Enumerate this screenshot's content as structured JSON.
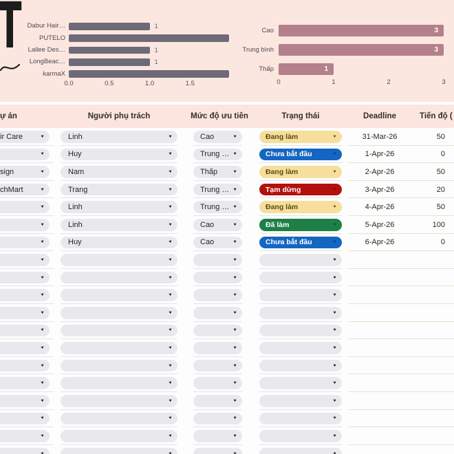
{
  "decor": {
    "title_fragment": "T",
    "swash": "~"
  },
  "chart_data": [
    {
      "type": "bar",
      "orientation": "horizontal",
      "title": "",
      "categories": [
        "Dabur Hair…",
        "PUTELO",
        "Lallee Des…",
        "LongBeac…",
        "karmaX"
      ],
      "values": [
        1,
        2,
        1,
        1,
        2
      ],
      "value_labels": [
        "1",
        "",
        "1",
        "1",
        ""
      ],
      "xticks": [
        "0.0",
        "0.5",
        "1.0",
        "1.5"
      ],
      "xlim": [
        0,
        2
      ],
      "bar_color": "#6e6a77",
      "grid": false,
      "legend": "none"
    },
    {
      "type": "bar",
      "orientation": "horizontal",
      "title": "",
      "categories": [
        "Cao",
        "Trung bình",
        "Thấp"
      ],
      "values": [
        3,
        3,
        1
      ],
      "value_labels": [
        "3",
        "3",
        "1"
      ],
      "xticks": [
        "0",
        "1",
        "2",
        "3"
      ],
      "xlim": [
        0,
        3
      ],
      "bar_color": "#b3808b",
      "grid": false,
      "legend": "none"
    }
  ],
  "table": {
    "columns": [
      {
        "key": "du-an",
        "label": "ự án"
      },
      {
        "key": "nguoi-phu-trach",
        "label": "Người phụ trách"
      },
      {
        "key": "muc-do-uu-tien",
        "label": "Mức độ ưu tiên"
      },
      {
        "key": "trang-thai",
        "label": "Trạng thái"
      },
      {
        "key": "deadline",
        "label": "Deadline"
      },
      {
        "key": "tien-do",
        "label": "Tiến độ ("
      }
    ],
    "rows": [
      {
        "project": "ir Care",
        "person": "Linh",
        "priority": "Cao",
        "status": "Đang làm",
        "deadline": "31-Mar-26",
        "progress": "50"
      },
      {
        "project": "",
        "person": "Huy",
        "priority": "Trung …",
        "status": "Chưa bắt đầu",
        "deadline": "1-Apr-26",
        "progress": "0"
      },
      {
        "project": "sign",
        "person": "Nam",
        "priority": "Thấp",
        "status": "Đang làm",
        "deadline": "2-Apr-26",
        "progress": "50"
      },
      {
        "project": "chMart",
        "person": "Trang",
        "priority": "Trung …",
        "status": "Tạm dừng",
        "deadline": "3-Apr-26",
        "progress": "20"
      },
      {
        "project": "",
        "person": "Linh",
        "priority": "Trung …",
        "status": "Đang làm",
        "deadline": "4-Apr-26",
        "progress": "50"
      },
      {
        "project": "",
        "person": "Linh",
        "priority": "Cao",
        "status": "Đã làm",
        "deadline": "5-Apr-26",
        "progress": "100"
      },
      {
        "project": "",
        "person": "Huy",
        "priority": "Cao",
        "status": "Chưa bắt đầu",
        "deadline": "6-Apr-26",
        "progress": "0"
      }
    ],
    "empty_row_count": 12
  },
  "status_colors": {
    "Đang làm": {
      "bg": "#f6df9c",
      "fg": "#5b4a14",
      "arrow": "#6b5200"
    },
    "Chưa bắt đầu": {
      "bg": "#1565c2",
      "fg": "#ffffff",
      "arrow": "#0a3e82"
    },
    "Tạm dừng": {
      "bg": "#b3100d",
      "fg": "#ffffff",
      "arrow": "#7a0806"
    },
    "Đã làm": {
      "bg": "#1d8046",
      "fg": "#ffffff",
      "arrow": "#0e5029"
    }
  },
  "icons": {
    "dropdown": "▼"
  }
}
